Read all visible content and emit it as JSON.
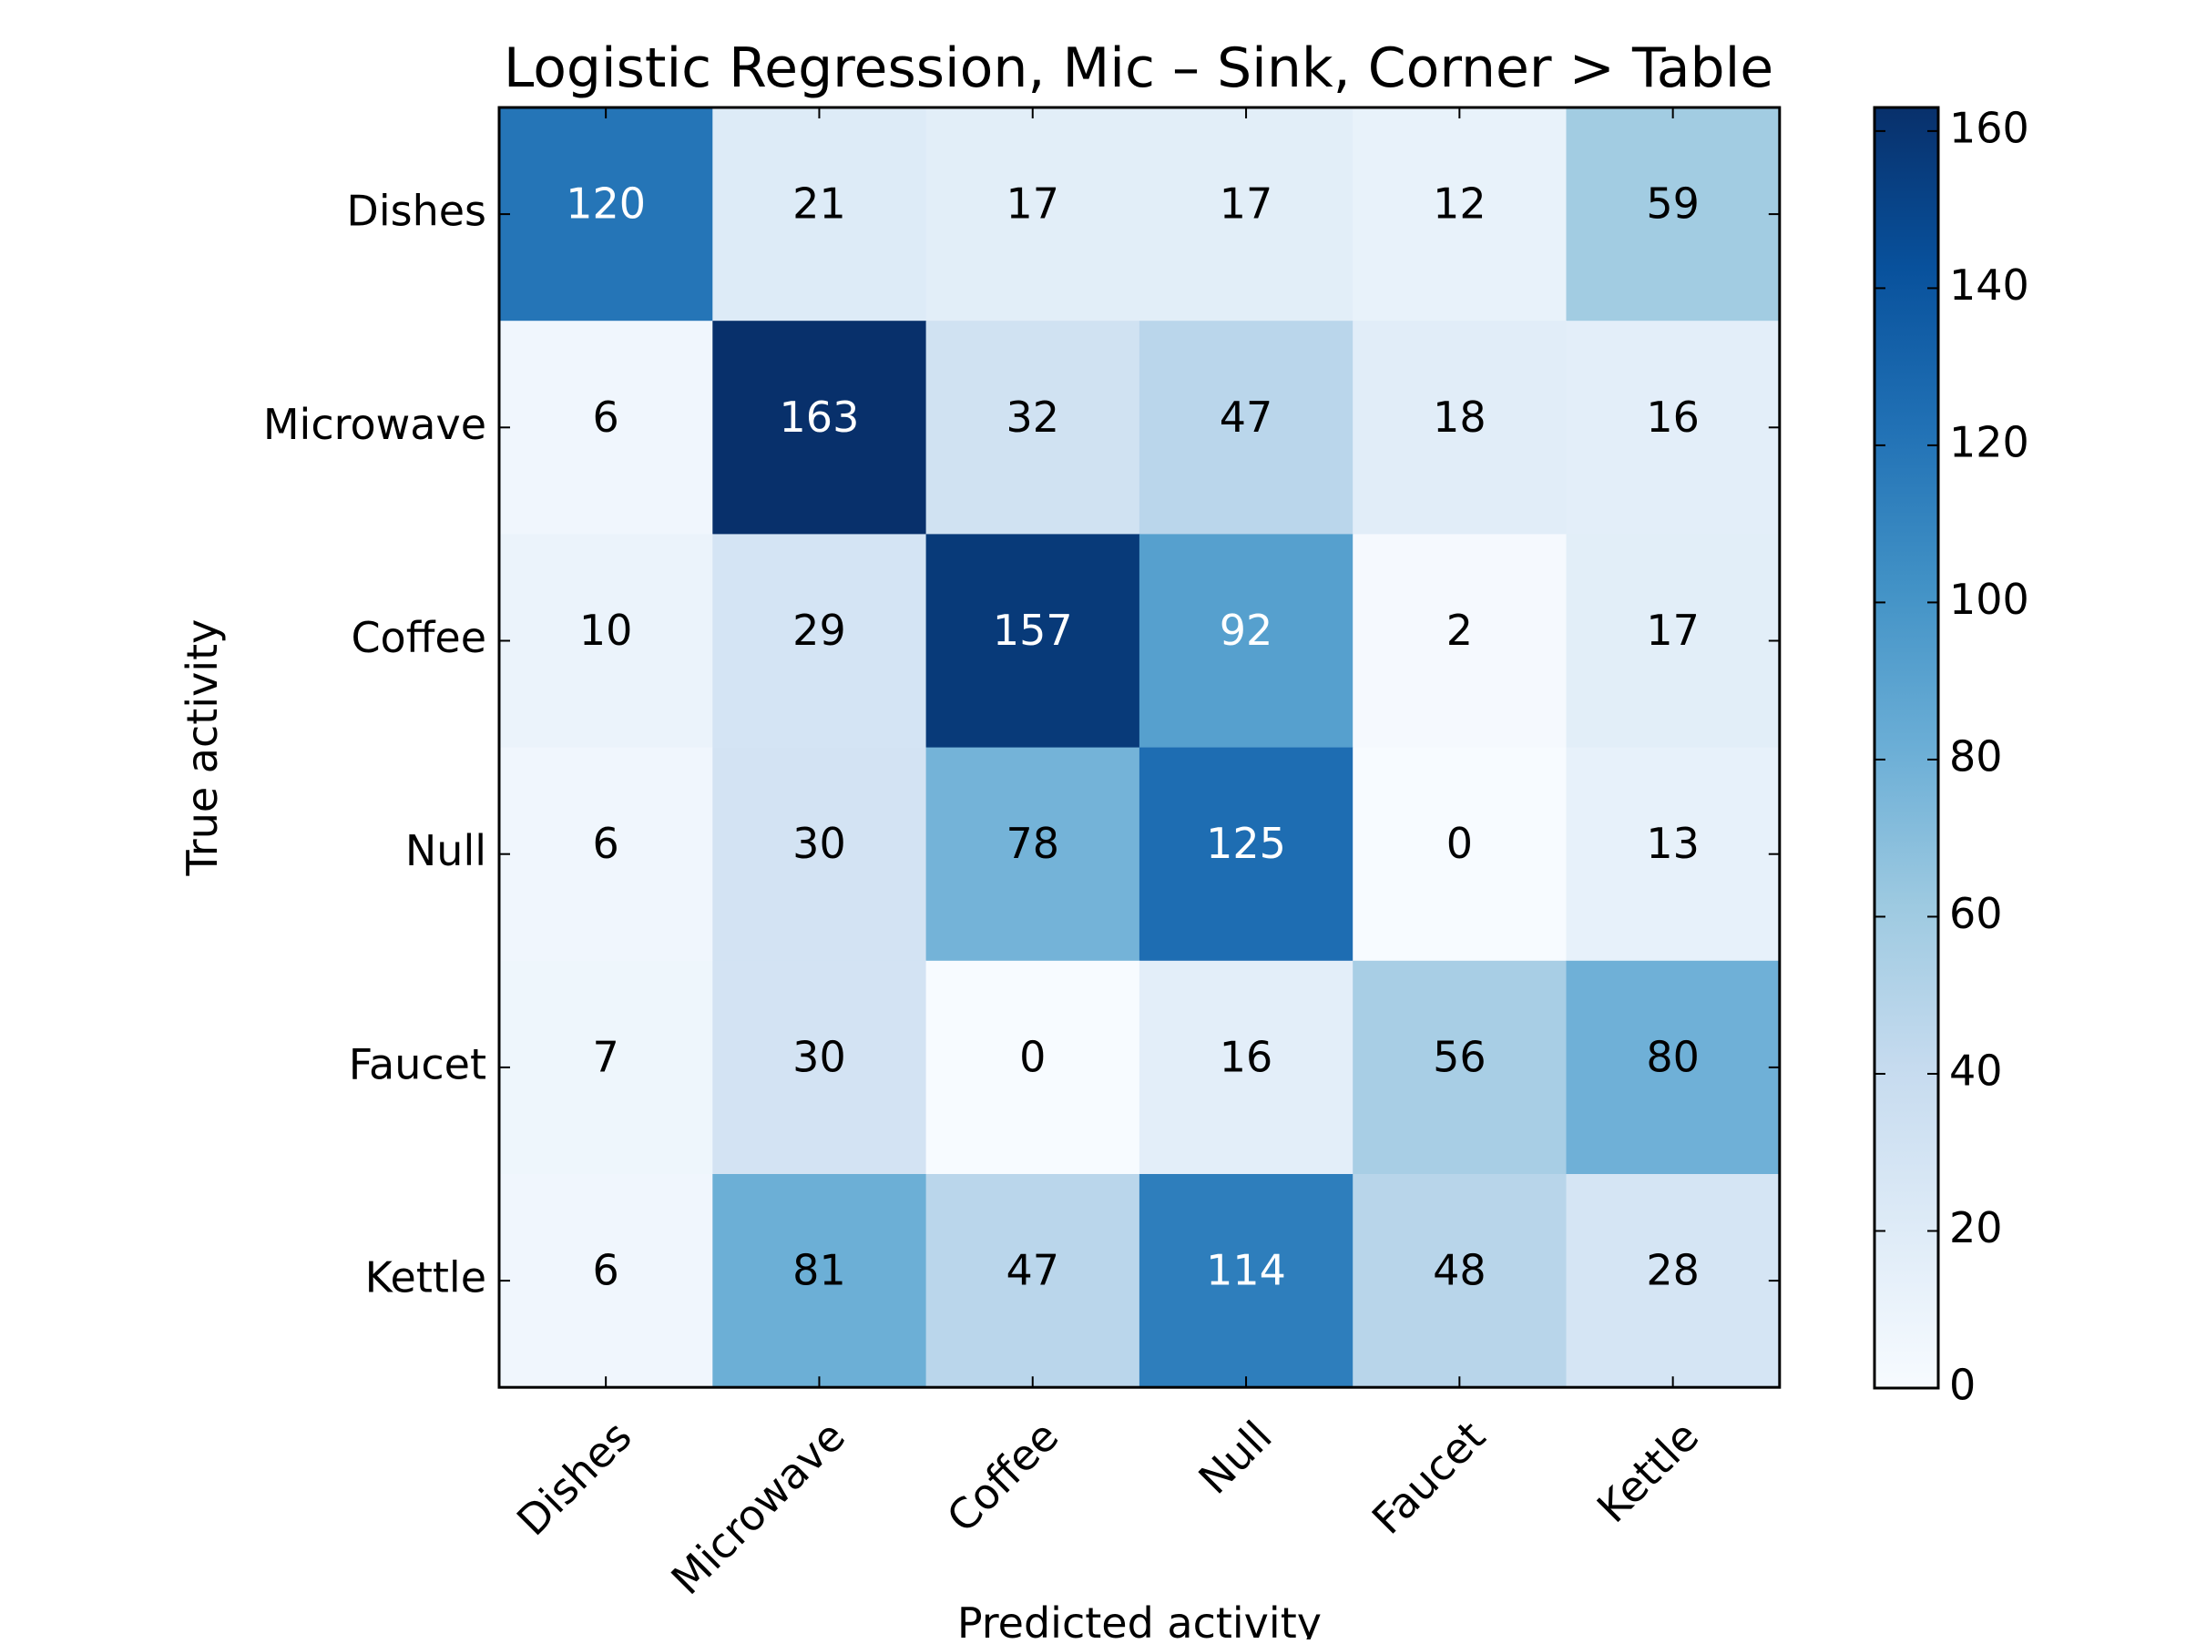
{
  "chart_data": {
    "type": "heatmap",
    "title": "Logistic Regression, Mic – Sink, Corner > Table",
    "xlabel": "Predicted activity",
    "ylabel": "True activity",
    "x_categories": [
      "Dishes",
      "Microwave",
      "Coffee",
      "Null",
      "Faucet",
      "Kettle"
    ],
    "y_categories": [
      "Dishes",
      "Microwave",
      "Coffee",
      "Null",
      "Faucet",
      "Kettle"
    ],
    "values": [
      [
        120,
        21,
        17,
        17,
        12,
        59
      ],
      [
        6,
        163,
        32,
        47,
        18,
        16
      ],
      [
        10,
        29,
        157,
        92,
        2,
        17
      ],
      [
        6,
        30,
        78,
        125,
        0,
        13
      ],
      [
        7,
        30,
        0,
        16,
        56,
        80
      ],
      [
        6,
        81,
        47,
        114,
        48,
        28
      ]
    ],
    "colormap": "Blues",
    "colorbar": {
      "min": 0,
      "max": 163,
      "ticks": [
        0,
        20,
        40,
        60,
        80,
        100,
        120,
        140,
        160
      ]
    },
    "grid": false,
    "x_tick_rotation": "45deg"
  }
}
